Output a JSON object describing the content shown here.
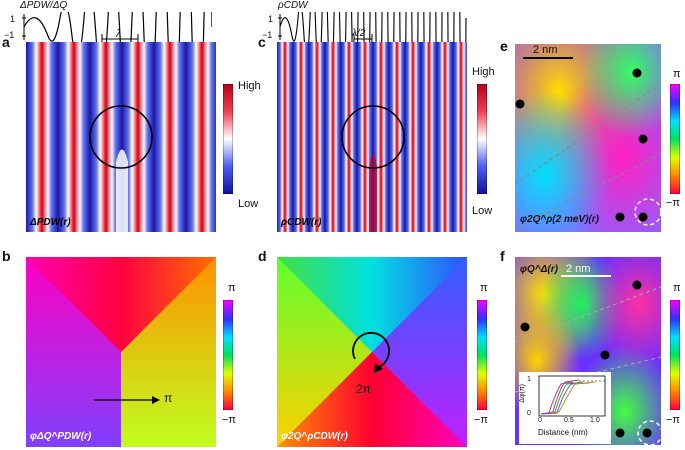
{
  "panels": {
    "a": {
      "letter": "a",
      "top_plot_title": "ΔPDW/ΔQ",
      "top_plot_ticks": [
        "1",
        "−1"
      ],
      "wavelength_label": "λ",
      "map_label": "ΔPDW(r)",
      "colorbar_high": "High",
      "colorbar_low": "Low"
    },
    "b": {
      "letter": "b",
      "map_label": "φΔQ^PDW(r)",
      "arrow_label": "π",
      "colorbar_top": "π",
      "colorbar_bottom": "−π"
    },
    "c": {
      "letter": "c",
      "top_plot_title": "ρCDW",
      "top_plot_ticks": [
        "1",
        "−1"
      ],
      "wavelength_label": "λ/2",
      "map_label": "ρCDW(r)",
      "colorbar_high": "High",
      "colorbar_low": "Low"
    },
    "d": {
      "letter": "d",
      "map_label": "φ2Q^ρCDW(r)",
      "winding_label": "2π",
      "colorbar_top": "π",
      "colorbar_bottom": "−π"
    },
    "e": {
      "letter": "e",
      "scalebar_label": "2 nm",
      "map_label": "φ2Q^ρ(2 meV)(r)",
      "colorbar_top": "π",
      "colorbar_bottom": "−π"
    },
    "f": {
      "letter": "f",
      "scalebar_label": "2 nm",
      "map_label": "φQ^Δ(r)",
      "inset_ylabel": "Δφ(π)",
      "inset_xlabel": "Distance (nm)",
      "inset_xticks": [
        "0",
        "0.5",
        "1.0"
      ],
      "inset_yticks": [
        "1",
        "0"
      ],
      "colorbar_top": "π",
      "colorbar_bottom": "−π"
    }
  }
}
